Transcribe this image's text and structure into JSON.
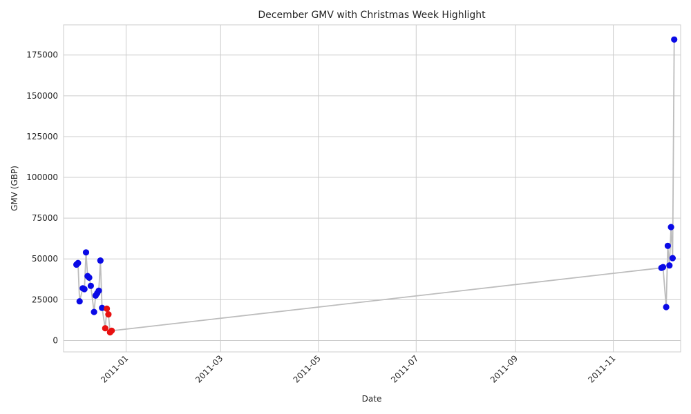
{
  "chart_data": {
    "type": "scatter",
    "title": "December GMV with Christmas Week Highlight",
    "xlabel": "Date",
    "ylabel": "GMV (GBP)",
    "x_range": [
      "2010-11-23",
      "2011-12-13"
    ],
    "ylim": [
      -7000,
      193500
    ],
    "x_ticks": [
      "2011-01",
      "2011-03",
      "2011-05",
      "2011-07",
      "2011-09",
      "2011-11"
    ],
    "y_ticks": [
      0,
      25000,
      50000,
      75000,
      100000,
      125000,
      150000,
      175000
    ],
    "grid": true,
    "colors": {
      "line": "#bdbdbd",
      "regular": "#0a0ae6",
      "christmas_week": "#e81010",
      "grid": "#cccccc",
      "axes_edge": "#cccccc"
    },
    "series": [
      {
        "role": "regular",
        "points": [
          {
            "x": "2010-12-01",
            "y": 46500
          },
          {
            "x": "2010-12-02",
            "y": 47500
          },
          {
            "x": "2010-12-03",
            "y": 24000
          },
          {
            "x": "2010-12-05",
            "y": 32000
          },
          {
            "x": "2010-12-06",
            "y": 31500
          },
          {
            "x": "2010-12-07",
            "y": 54000
          },
          {
            "x": "2010-12-08",
            "y": 39500
          },
          {
            "x": "2010-12-09",
            "y": 38500
          },
          {
            "x": "2010-12-10",
            "y": 33500
          },
          {
            "x": "2010-12-12",
            "y": 17500
          },
          {
            "x": "2010-12-13",
            "y": 27500
          },
          {
            "x": "2010-12-14",
            "y": 29000
          },
          {
            "x": "2010-12-15",
            "y": 30500
          },
          {
            "x": "2010-12-16",
            "y": 49000
          },
          {
            "x": "2010-12-17",
            "y": 20000
          },
          {
            "x": "2011-12-01",
            "y": 44500
          },
          {
            "x": "2011-12-02",
            "y": 45000
          },
          {
            "x": "2011-12-04",
            "y": 20500
          },
          {
            "x": "2011-12-05",
            "y": 58000
          },
          {
            "x": "2011-12-06",
            "y": 46000
          },
          {
            "x": "2011-12-07",
            "y": 69500
          },
          {
            "x": "2011-12-08",
            "y": 50500
          },
          {
            "x": "2011-12-09",
            "y": 184500
          }
        ]
      },
      {
        "role": "christmas_week",
        "points": [
          {
            "x": "2010-12-19",
            "y": 7500
          },
          {
            "x": "2010-12-20",
            "y": 19500
          },
          {
            "x": "2010-12-21",
            "y": 16000
          },
          {
            "x": "2010-12-22",
            "y": 5000
          },
          {
            "x": "2010-12-23",
            "y": 6000
          }
        ]
      }
    ]
  }
}
